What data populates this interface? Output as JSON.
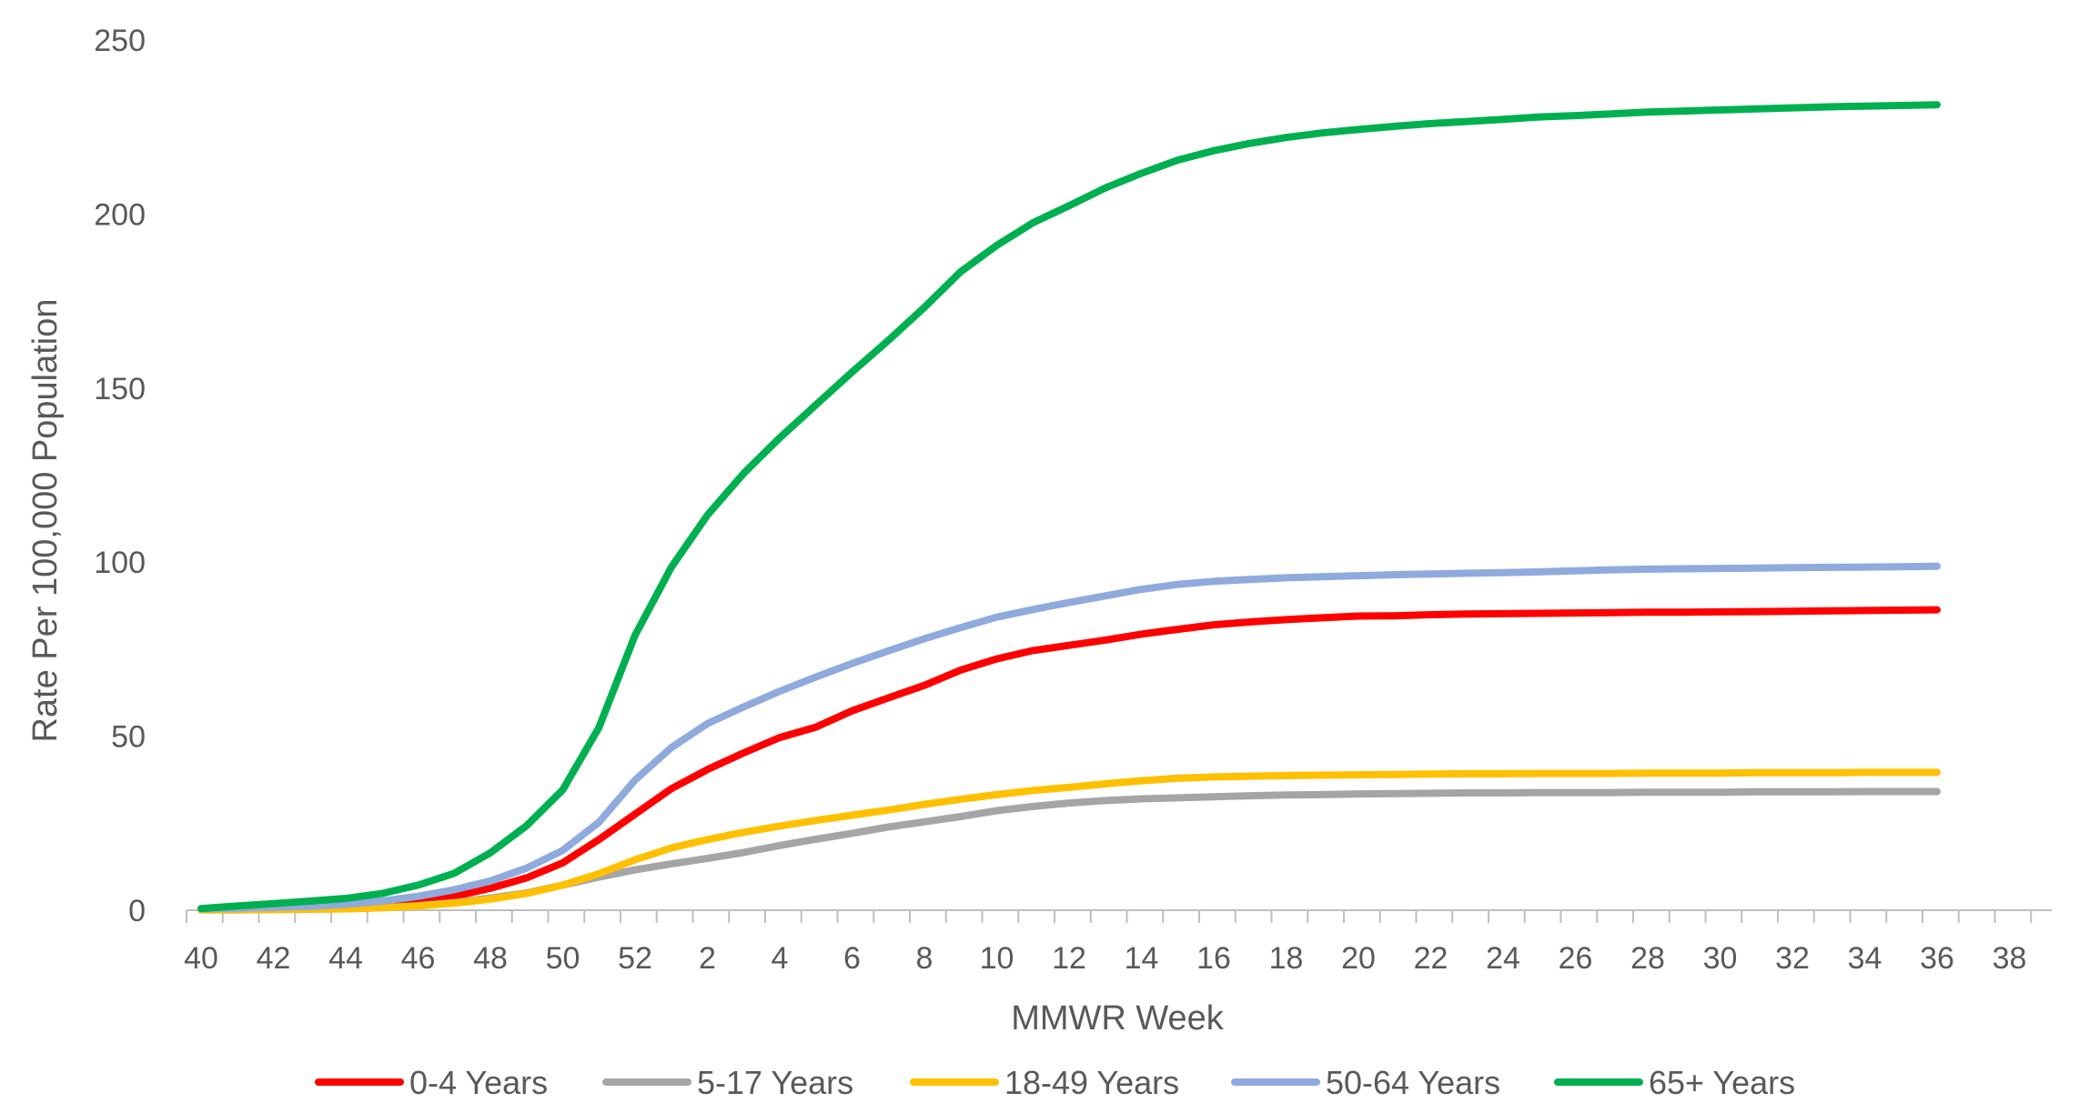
{
  "chart_data": {
    "type": "line",
    "title": "",
    "xlabel": "MMWR Week",
    "ylabel": "Rate Per 100,000 Population",
    "ylim": [
      0,
      250
    ],
    "yticks": [
      0,
      50,
      100,
      150,
      200,
      250
    ],
    "grid": false,
    "legend_position": "bottom",
    "x": [
      40,
      41,
      42,
      43,
      44,
      45,
      46,
      47,
      48,
      49,
      50,
      51,
      52,
      1,
      2,
      3,
      4,
      5,
      6,
      7,
      8,
      9,
      10,
      11,
      12,
      13,
      14,
      15,
      16,
      17,
      18,
      19,
      20,
      21,
      22,
      23,
      24,
      25,
      26,
      27,
      28,
      29,
      30,
      31,
      32,
      33,
      34,
      35,
      36
    ],
    "x_tick_labels": [
      "40",
      "42",
      "44",
      "46",
      "48",
      "50",
      "52",
      "2",
      "4",
      "6",
      "8",
      "10",
      "12",
      "14",
      "16",
      "18",
      "20",
      "22",
      "24",
      "26",
      "28",
      "30",
      "32",
      "34",
      "36",
      "38"
    ],
    "series": [
      {
        "name": "0-4 Years",
        "color": "#ff0000",
        "values": [
          0.3,
          0.3,
          0.4,
          0.5,
          0.9,
          1.5,
          2.5,
          4.0,
          6.3,
          9.3,
          13.6,
          20.3,
          27.6,
          34.9,
          40.4,
          45.2,
          49.6,
          52.6,
          57.3,
          61.0,
          64.6,
          69.0,
          72.2,
          74.6,
          76.1,
          77.6,
          79.3,
          80.7,
          82.0,
          82.8,
          83.5,
          84.0,
          84.5,
          84.6,
          84.9,
          85.1,
          85.2,
          85.3,
          85.4,
          85.5,
          85.6,
          85.6,
          85.7,
          85.8,
          85.9,
          86.0,
          86.1,
          86.2,
          86.3
        ]
      },
      {
        "name": "5-17 Years",
        "color": "#a5a5a5",
        "values": [
          0.1,
          0.1,
          0.2,
          0.3,
          0.4,
          0.7,
          1.3,
          2.2,
          3.5,
          5.0,
          7.2,
          9.5,
          11.6,
          13.3,
          14.9,
          16.6,
          18.6,
          20.4,
          22.1,
          23.9,
          25.4,
          26.9,
          28.6,
          29.8,
          30.8,
          31.5,
          32.0,
          32.3,
          32.6,
          32.9,
          33.1,
          33.2,
          33.4,
          33.5,
          33.6,
          33.7,
          33.7,
          33.8,
          33.8,
          33.8,
          33.9,
          33.9,
          33.9,
          34.0,
          34.0,
          34.0,
          34.1,
          34.1,
          34.1
        ]
      },
      {
        "name": "18-49 Years",
        "color": "#ffc000",
        "values": [
          0.1,
          0.1,
          0.2,
          0.3,
          0.4,
          0.7,
          1.2,
          2.0,
          3.2,
          4.8,
          7.2,
          10.5,
          14.5,
          17.9,
          20.3,
          22.4,
          24.2,
          25.8,
          27.3,
          28.8,
          30.4,
          31.9,
          33.2,
          34.4,
          35.3,
          36.3,
          37.2,
          37.9,
          38.3,
          38.5,
          38.7,
          38.8,
          38.9,
          39.0,
          39.1,
          39.2,
          39.2,
          39.3,
          39.3,
          39.3,
          39.4,
          39.4,
          39.4,
          39.5,
          39.5,
          39.5,
          39.6,
          39.6,
          39.6
        ]
      },
      {
        "name": "50-64 Years",
        "color": "#8faadc",
        "values": [
          0.4,
          0.6,
          0.8,
          1.1,
          1.7,
          2.6,
          4.0,
          5.9,
          8.4,
          12.1,
          17.2,
          25.3,
          37.4,
          46.7,
          53.6,
          58.4,
          62.9,
          67.0,
          70.9,
          74.5,
          78.0,
          81.2,
          84.2,
          86.4,
          88.4,
          90.3,
          92.2,
          93.6,
          94.5,
          95.0,
          95.5,
          95.8,
          96.1,
          96.4,
          96.6,
          96.8,
          97.0,
          97.2,
          97.5,
          97.8,
          98.0,
          98.1,
          98.2,
          98.3,
          98.4,
          98.5,
          98.6,
          98.7,
          98.8
        ]
      },
      {
        "name": "65+ Years",
        "color": "#00b050",
        "values": [
          0.5,
          1.2,
          1.9,
          2.6,
          3.4,
          4.8,
          7.2,
          10.6,
          16.5,
          24.3,
          34.6,
          52.5,
          79.0,
          98.5,
          113.5,
          125.5,
          135.7,
          145.2,
          154.6,
          163.7,
          173.2,
          183.4,
          191.0,
          197.5,
          202.4,
          207.5,
          211.7,
          215.5,
          218.2,
          220.3,
          222.0,
          223.3,
          224.3,
          225.2,
          226.0,
          226.6,
          227.2,
          227.9,
          228.3,
          228.8,
          229.3,
          229.6,
          229.9,
          230.2,
          230.5,
          230.8,
          231.0,
          231.2,
          231.4
        ]
      }
    ]
  }
}
